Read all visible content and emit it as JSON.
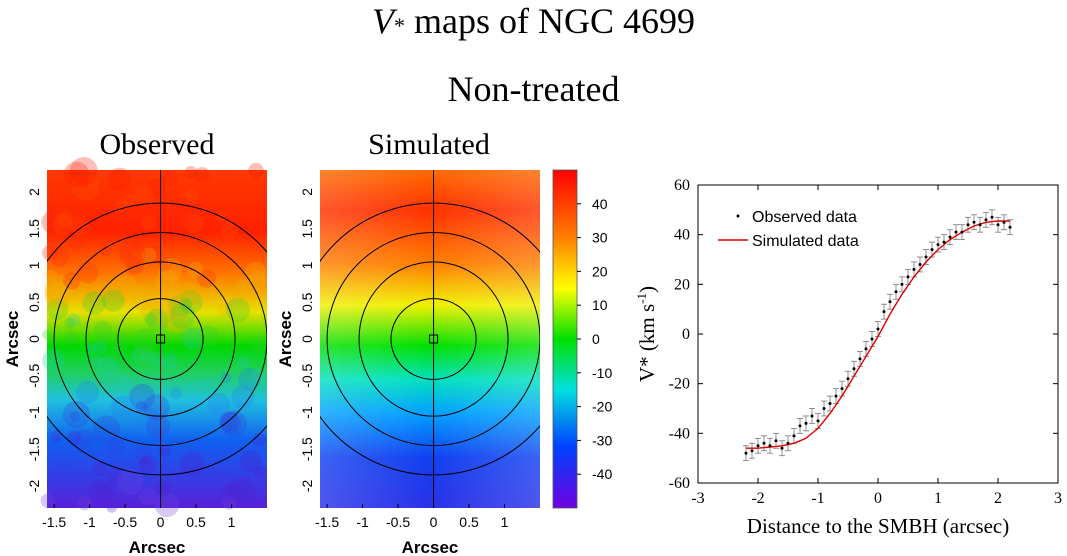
{
  "title": {
    "symbol": "V",
    "star": "*",
    "rest": " maps of NGC 4699"
  },
  "subtitle": "Non-treated",
  "maps": {
    "observed_title": "Observed",
    "simulated_title": "Simulated",
    "x_label": "Arcsec",
    "y_label": "Arcsec",
    "x_ticks": [
      -1.5,
      -1,
      -0.5,
      0,
      0.5,
      1
    ],
    "x_tick_labels": [
      "-1.5",
      "-1",
      "-0.5",
      "0",
      "0.5",
      "1"
    ],
    "y_ticks": [
      2,
      1.5,
      1,
      0.5,
      0,
      -0.5,
      -1,
      -1.5,
      -2
    ],
    "y_tick_labels": [
      "2",
      "1.5",
      "1",
      "0.5",
      "0",
      "-0.5",
      "-1",
      "-1.5",
      "-2"
    ],
    "x_range": [
      -1.6,
      1.5
    ],
    "y_range": [
      -2.3,
      2.3
    ],
    "contour_semi_axes": [
      [
        0.6,
        0.55
      ],
      [
        1.05,
        1.05
      ],
      [
        1.5,
        1.45
      ],
      [
        1.95,
        1.85
      ]
    ],
    "colorbar": {
      "ticks": [
        40,
        30,
        20,
        10,
        0,
        -10,
        -20,
        -30,
        -40
      ],
      "tick_labels": [
        "40",
        "30",
        "20",
        "10",
        "0",
        "-10",
        "-20",
        "-30",
        "-40"
      ],
      "range": [
        -50,
        50
      ]
    }
  },
  "chart_data": {
    "type": "scatter",
    "xlabel": "Distance to the SMBH (arcsec)",
    "ylabel": "V* (km s-1)",
    "ylabel_parts": {
      "main": "V* (km s",
      "sup": "-1",
      "end": ")"
    },
    "xlim": [
      -3,
      3
    ],
    "ylim": [
      -60,
      60
    ],
    "x_ticks": [
      -3,
      -2,
      -1,
      0,
      1,
      2,
      3
    ],
    "y_ticks": [
      -60,
      -40,
      -20,
      0,
      20,
      40,
      60
    ],
    "legend_position": "top-left",
    "series": [
      {
        "name": "Observed data",
        "style": "points-with-errorbars",
        "color": "#000000",
        "error": 3,
        "x": [
          -2.2,
          -2.1,
          -2.0,
          -1.9,
          -1.8,
          -1.7,
          -1.6,
          -1.5,
          -1.4,
          -1.3,
          -1.2,
          -1.1,
          -1.0,
          -0.9,
          -0.8,
          -0.7,
          -0.6,
          -0.5,
          -0.4,
          -0.3,
          -0.2,
          -0.1,
          0.0,
          0.1,
          0.2,
          0.3,
          0.4,
          0.5,
          0.6,
          0.7,
          0.8,
          0.9,
          1.0,
          1.1,
          1.2,
          1.3,
          1.4,
          1.5,
          1.6,
          1.7,
          1.8,
          1.9,
          2.0,
          2.1,
          2.2
        ],
        "y": [
          -48,
          -47,
          -45,
          -44,
          -45,
          -43,
          -46,
          -44,
          -41,
          -37,
          -36,
          -33,
          -35,
          -30,
          -28,
          -25,
          -22,
          -18,
          -14,
          -10,
          -6,
          -2,
          2,
          9,
          13,
          17,
          20,
          23,
          26,
          28,
          31,
          34,
          36,
          37,
          39,
          41,
          41,
          44,
          45,
          44,
          46,
          47,
          44,
          45,
          43
        ]
      },
      {
        "name": "Simulated data",
        "style": "line",
        "color": "#e00000",
        "x": [
          -2.2,
          -2.0,
          -1.8,
          -1.6,
          -1.4,
          -1.2,
          -1.0,
          -0.8,
          -0.6,
          -0.4,
          -0.2,
          0.0,
          0.2,
          0.4,
          0.6,
          0.8,
          1.0,
          1.2,
          1.4,
          1.6,
          1.8,
          2.0,
          2.2
        ],
        "y": [
          -46,
          -46,
          -45.5,
          -45,
          -44,
          -42,
          -38,
          -32,
          -25,
          -17,
          -9,
          -1,
          8,
          16,
          23,
          29,
          34,
          38,
          41,
          43.5,
          45,
          45.5,
          45.5
        ]
      }
    ]
  }
}
